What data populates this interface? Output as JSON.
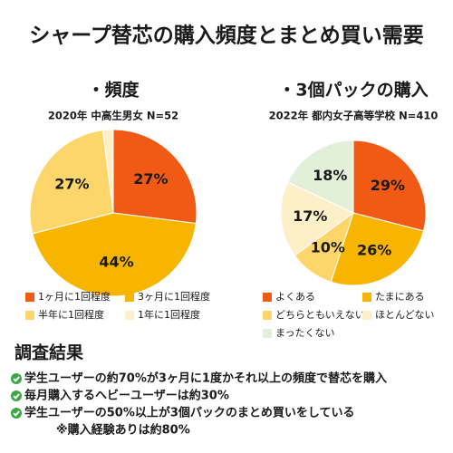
{
  "title": "シャープ替芯の購入頻度とまとめ買い需要",
  "results": {
    "heading": "調査結果",
    "items": [
      "学生ユーザーの約70%が3ヶ月に1度かそれ以上の頻度で替芯を購入",
      "毎月購入するヘビーユーザーは約30%",
      "学生ユーザーの50%以上が3個パックのまとめ買いをしている"
    ],
    "note": "※購入経験ありは約80%"
  },
  "chart_data": [
    {
      "type": "pie",
      "title": "・頻度",
      "subtitle": "2020年 中高生男女 N=52",
      "categories": [
        "1ヶ月に1回程度",
        "3ヶ月に1回程度",
        "半年に1回程度",
        "1年に1回程度"
      ],
      "values": [
        27,
        44,
        27,
        2
      ],
      "value_labels": [
        "27%",
        "44%",
        "27%",
        null
      ],
      "colors": [
        "#f05a14",
        "#f7b500",
        "#fcd66a",
        "#fdf0c8"
      ]
    },
    {
      "type": "pie",
      "title": "・3個パックの購入",
      "subtitle": "2022年 都内女子高等学校 N=410",
      "categories": [
        "よくある",
        "たまにある",
        "どちらともいえない",
        "ほとんどない",
        "まったくない"
      ],
      "values": [
        29,
        26,
        10,
        17,
        18
      ],
      "value_labels": [
        "29%",
        "26%",
        "10%",
        "17%",
        "18%"
      ],
      "colors": [
        "#f05a14",
        "#f7b500",
        "#fcd66a",
        "#fdf0c8",
        "#e2efd9"
      ]
    }
  ]
}
